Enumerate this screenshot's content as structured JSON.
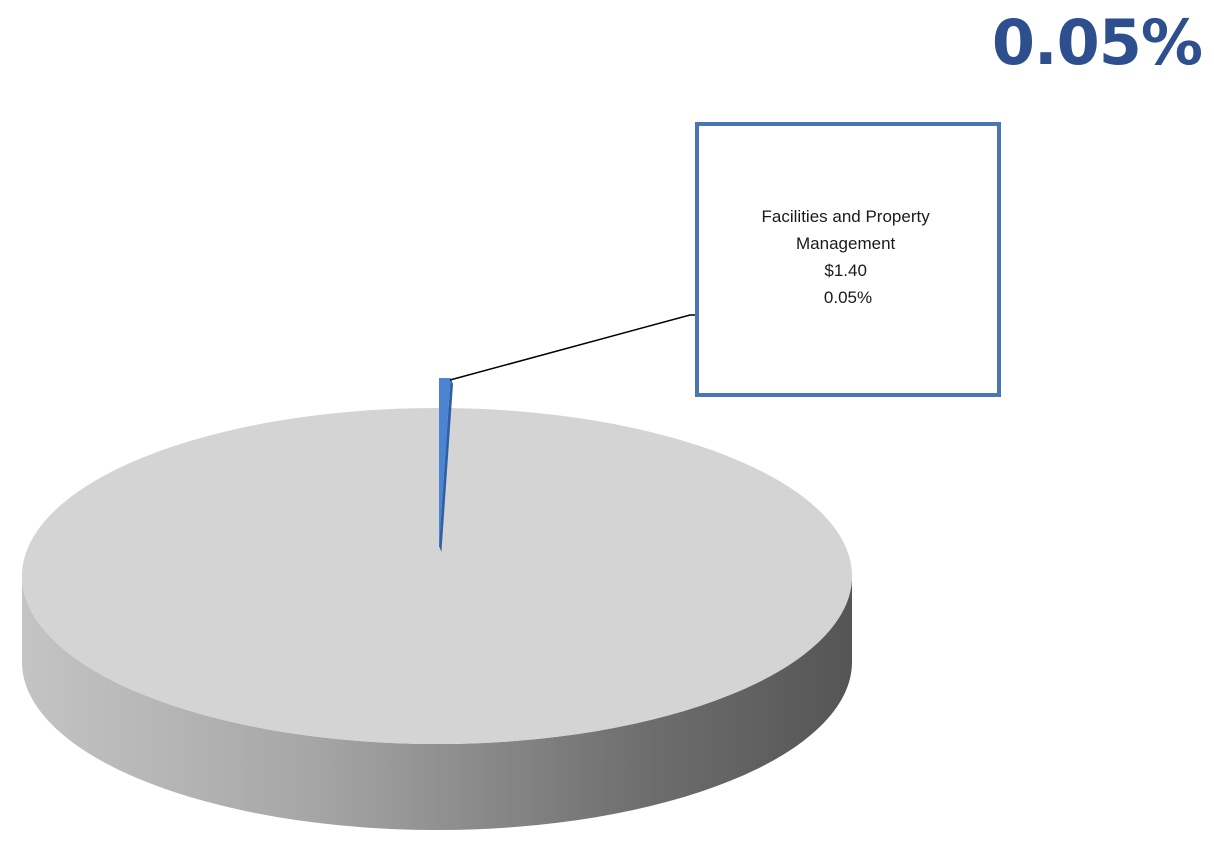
{
  "headline": "0.05%",
  "colors": {
    "headline": "#2e4f8e",
    "highlight_slice": "#4a84d2",
    "highlight_slice_side": "#2f5fa6",
    "rest_top": "#d4d4d4",
    "callout_border": "#4a76b6"
  },
  "chart_data": {
    "type": "pie",
    "style": "3d",
    "title": "",
    "slices": [
      {
        "name": "Facilities and Property Management",
        "value": 1.4,
        "percent": 0.05,
        "value_label": "$1.40",
        "percent_label": "0.05%",
        "highlighted": true
      },
      {
        "name": "",
        "percent": 99.95,
        "highlighted": false
      }
    ],
    "callout": {
      "lines": [
        "Facilities and Property",
        "Management",
        "$1.40",
        "0.05%"
      ]
    }
  }
}
